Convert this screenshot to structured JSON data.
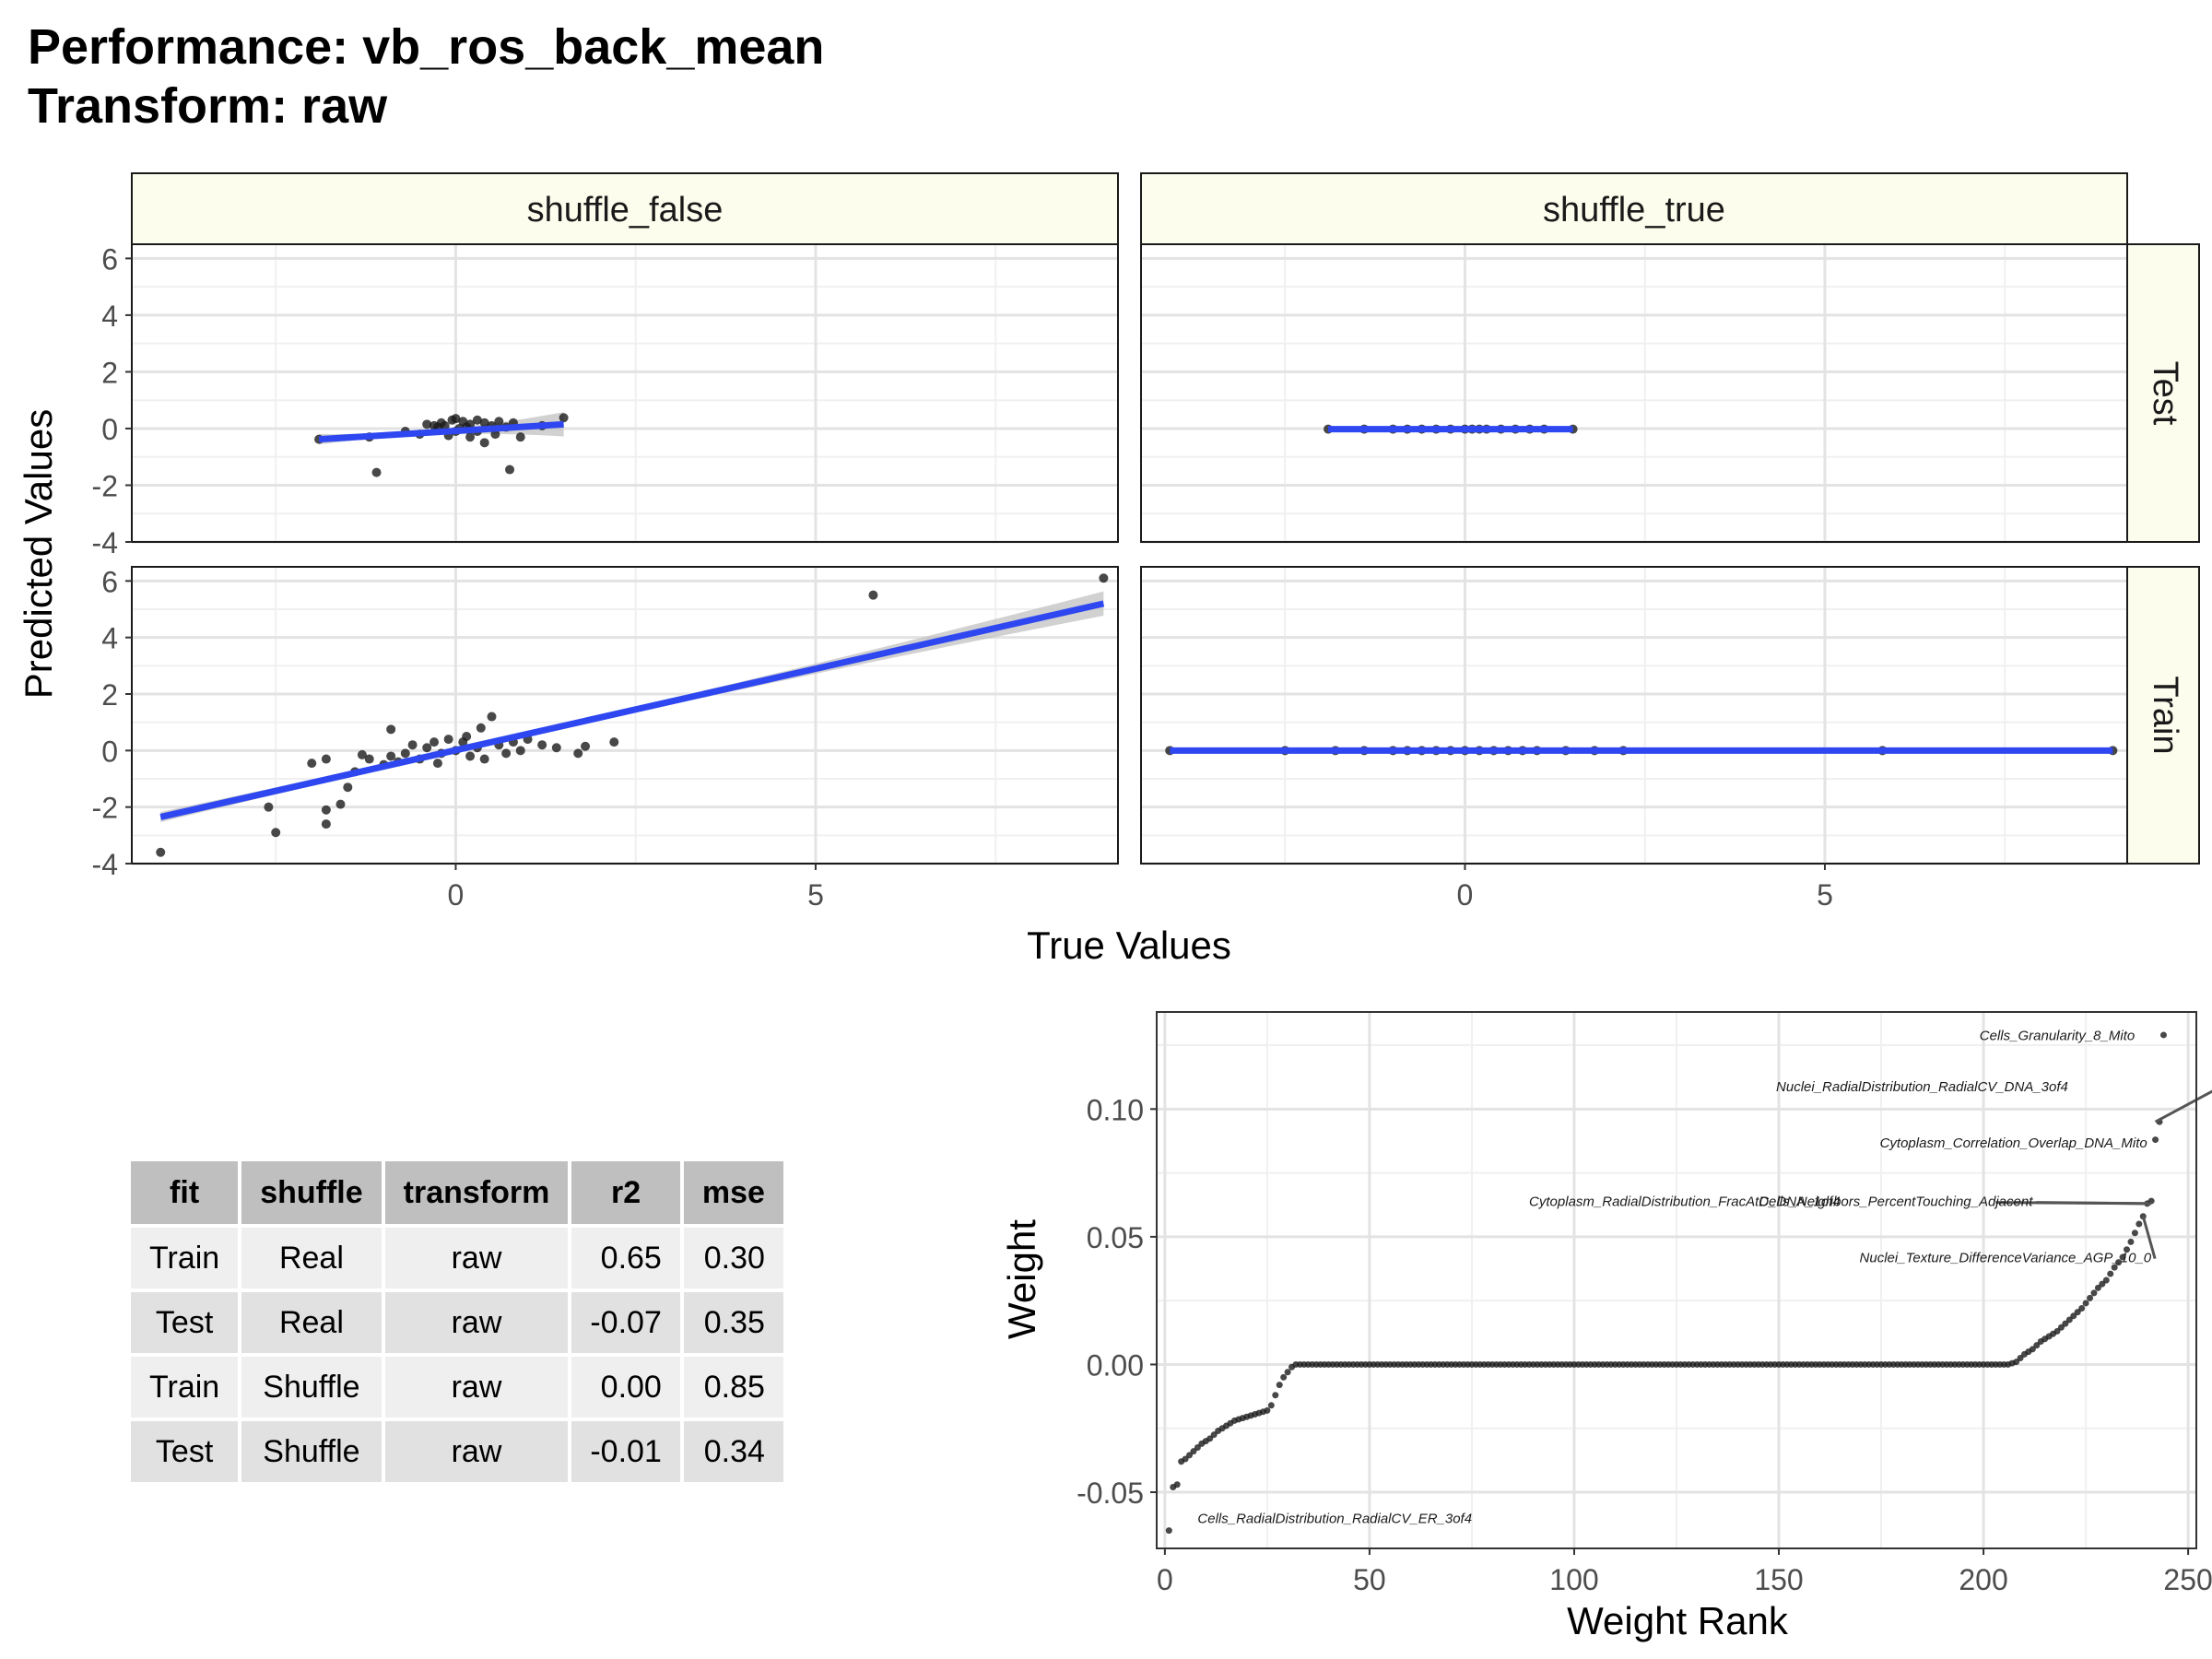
{
  "title_line1": "Performance: vb_ros_back_mean",
  "title_line2": "Transform: raw",
  "chart_data": [
    {
      "type": "scatter",
      "facet_cols": [
        "shuffle_false",
        "shuffle_true"
      ],
      "facet_rows": [
        "Test",
        "Train"
      ],
      "xlabel": "True Values",
      "ylabel": "Predicted Values",
      "xlim": [
        -4.5,
        9.2
      ],
      "ylim": [
        -4,
        6.5
      ],
      "x_ticks": [
        0,
        5
      ],
      "y_ticks": [
        -4,
        -2,
        0,
        2,
        4,
        6
      ],
      "y_tick_labels": [
        "-4",
        "-2",
        "0",
        "2",
        "4",
        "6"
      ],
      "colors": {
        "points": "#1a1a1a",
        "fit_line": "#2e47f0",
        "ci_band": "#bdbdbd",
        "strip_fill": "#fdfdee"
      },
      "panels": [
        {
          "col": "shuffle_false",
          "row": "Test",
          "fit": {
            "x": [
              -1.9,
              1.5
            ],
            "y": [
              -0.38,
              0.15
            ]
          },
          "points": [
            [
              -1.9,
              -0.38
            ],
            [
              -1.1,
              -1.55
            ],
            [
              0.75,
              -1.45
            ],
            [
              1.5,
              0.38
            ],
            [
              0.9,
              -0.3
            ],
            [
              -1.2,
              -0.3
            ],
            [
              -0.5,
              -0.2
            ],
            [
              -0.3,
              0.1
            ],
            [
              -0.2,
              0.2
            ],
            [
              0.0,
              0.35
            ],
            [
              0.1,
              0.25
            ],
            [
              0.2,
              0.15
            ],
            [
              0.3,
              -0.1
            ],
            [
              0.4,
              0.2
            ],
            [
              0.5,
              0.1
            ],
            [
              0.6,
              0.25
            ],
            [
              0.7,
              0.05
            ],
            [
              0.8,
              0.2
            ],
            [
              -0.1,
              -0.25
            ],
            [
              0.2,
              -0.3
            ],
            [
              0.4,
              -0.5
            ],
            [
              -0.7,
              -0.1
            ],
            [
              -0.4,
              0.15
            ],
            [
              0.05,
              0.0
            ],
            [
              0.15,
              0.05
            ],
            [
              -0.25,
              0.05
            ],
            [
              0.55,
              -0.2
            ],
            [
              -0.05,
              0.3
            ],
            [
              1.2,
              0.1
            ],
            [
              0.3,
              0.3
            ],
            [
              0.0,
              -0.1
            ],
            [
              -0.15,
              0.1
            ]
          ]
        },
        {
          "col": "shuffle_true",
          "row": "Test",
          "fit": {
            "x": [
              -1.9,
              1.5
            ],
            "y": [
              -0.02,
              -0.02
            ]
          },
          "points": [
            [
              -1.9,
              -0.02
            ],
            [
              -1.4,
              -0.02
            ],
            [
              -1.0,
              -0.02
            ],
            [
              -0.8,
              -0.02
            ],
            [
              -0.6,
              -0.02
            ],
            [
              -0.4,
              -0.02
            ],
            [
              -0.2,
              -0.02
            ],
            [
              0.0,
              -0.02
            ],
            [
              0.1,
              -0.02
            ],
            [
              0.2,
              -0.02
            ],
            [
              0.3,
              -0.02
            ],
            [
              0.5,
              -0.02
            ],
            [
              0.7,
              -0.02
            ],
            [
              0.9,
              -0.02
            ],
            [
              1.1,
              -0.02
            ],
            [
              1.5,
              -0.02
            ]
          ]
        },
        {
          "col": "shuffle_false",
          "row": "Train",
          "fit": {
            "x": [
              -4.1,
              9.0
            ],
            "y": [
              -2.35,
              5.2
            ]
          },
          "points": [
            [
              -4.1,
              -3.6
            ],
            [
              -2.6,
              -2.0
            ],
            [
              -2.5,
              -2.9
            ],
            [
              -1.8,
              -2.6
            ],
            [
              -1.8,
              -2.1
            ],
            [
              -1.6,
              -1.9
            ],
            [
              -1.5,
              -1.3
            ],
            [
              -2.0,
              -0.45
            ],
            [
              -1.8,
              -0.3
            ],
            [
              -1.4,
              -0.75
            ],
            [
              -1.2,
              -0.3
            ],
            [
              -1.0,
              -0.5
            ],
            [
              -0.9,
              -0.2
            ],
            [
              -0.8,
              -0.4
            ],
            [
              -0.7,
              -0.1
            ],
            [
              -0.6,
              0.2
            ],
            [
              -0.5,
              -0.3
            ],
            [
              -0.4,
              0.1
            ],
            [
              -0.3,
              0.3
            ],
            [
              -0.2,
              -0.1
            ],
            [
              -0.1,
              0.4
            ],
            [
              0.0,
              0.0
            ],
            [
              0.1,
              0.3
            ],
            [
              0.2,
              -0.2
            ],
            [
              0.3,
              0.1
            ],
            [
              0.4,
              -0.3
            ],
            [
              0.5,
              1.2
            ],
            [
              0.6,
              0.2
            ],
            [
              0.7,
              -0.1
            ],
            [
              0.8,
              0.3
            ],
            [
              0.9,
              0.0
            ],
            [
              1.0,
              0.4
            ],
            [
              1.2,
              0.2
            ],
            [
              1.4,
              0.1
            ],
            [
              1.7,
              -0.1
            ],
            [
              1.8,
              0.15
            ],
            [
              2.2,
              0.3
            ],
            [
              -0.9,
              0.75
            ],
            [
              -1.3,
              -0.15
            ],
            [
              0.35,
              0.8
            ],
            [
              -0.25,
              -0.45
            ],
            [
              0.15,
              0.5
            ],
            [
              5.8,
              5.5
            ],
            [
              9.0,
              6.1
            ]
          ]
        },
        {
          "col": "shuffle_true",
          "row": "Train",
          "fit": {
            "x": [
              -4.1,
              9.0
            ],
            "y": [
              0.0,
              0.0
            ]
          },
          "points": [
            [
              -4.1,
              0.0
            ],
            [
              -2.5,
              0.0
            ],
            [
              -1.8,
              0.0
            ],
            [
              -1.4,
              0.0
            ],
            [
              -1.0,
              0.0
            ],
            [
              -0.8,
              0.0
            ],
            [
              -0.6,
              0.0
            ],
            [
              -0.4,
              0.0
            ],
            [
              -0.2,
              0.0
            ],
            [
              0.0,
              0.0
            ],
            [
              0.2,
              0.0
            ],
            [
              0.4,
              0.0
            ],
            [
              0.6,
              0.0
            ],
            [
              0.8,
              0.0
            ],
            [
              1.0,
              0.0
            ],
            [
              1.4,
              0.0
            ],
            [
              1.8,
              0.0
            ],
            [
              2.2,
              0.0
            ],
            [
              5.8,
              0.0
            ],
            [
              9.0,
              0.0
            ]
          ]
        }
      ]
    },
    {
      "type": "scatter",
      "xlabel": "Weight Rank",
      "ylabel": "Weight",
      "xlim": [
        -2,
        252
      ],
      "ylim": [
        -0.072,
        0.138
      ],
      "x_ticks": [
        0,
        50,
        100,
        150,
        200,
        250
      ],
      "x_tick_labels": [
        "0",
        "50",
        "100",
        "150",
        "200",
        "250"
      ],
      "y_ticks": [
        -0.05,
        0.0,
        0.05,
        0.1
      ],
      "y_tick_labels": [
        "-0.05",
        "0.00",
        "0.05",
        "0.10"
      ],
      "curve_knots": [
        [
          1,
          -0.065
        ],
        [
          2,
          -0.048
        ],
        [
          3,
          -0.047
        ],
        [
          4,
          -0.038
        ],
        [
          5,
          -0.037
        ],
        [
          7,
          -0.034
        ],
        [
          9,
          -0.031
        ],
        [
          11,
          -0.029
        ],
        [
          13,
          -0.026
        ],
        [
          15,
          -0.024
        ],
        [
          17,
          -0.022
        ],
        [
          19,
          -0.021
        ],
        [
          21,
          -0.02
        ],
        [
          23,
          -0.019
        ],
        [
          25,
          -0.018
        ],
        [
          26,
          -0.016
        ],
        [
          27,
          -0.012
        ],
        [
          28,
          -0.008
        ],
        [
          29,
          -0.005
        ],
        [
          30,
          -0.003
        ],
        [
          31,
          -0.001
        ],
        [
          32,
          0.0
        ],
        [
          206,
          0.0
        ],
        [
          208,
          0.001
        ],
        [
          210,
          0.004
        ],
        [
          212,
          0.006
        ],
        [
          214,
          0.009
        ],
        [
          216,
          0.011
        ],
        [
          218,
          0.013
        ],
        [
          220,
          0.016
        ],
        [
          222,
          0.019
        ],
        [
          224,
          0.022
        ],
        [
          226,
          0.026
        ],
        [
          228,
          0.03
        ],
        [
          230,
          0.033
        ],
        [
          232,
          0.038
        ],
        [
          234,
          0.042
        ],
        [
          236,
          0.048
        ],
        [
          238,
          0.055
        ],
        [
          239,
          0.058
        ],
        [
          240,
          0.063
        ],
        [
          241,
          0.064
        ],
        [
          242,
          0.088
        ],
        [
          243,
          0.095
        ],
        [
          244,
          0.129
        ]
      ],
      "annotations": [
        {
          "label": "Cells_Granularity_8_Mito",
          "x": 218,
          "y": 0.127,
          "anchor": "middle"
        },
        {
          "label": "Nuclei_RadialDistribution_RadialCV_DNA_3of4",
          "x": 185,
          "y": 0.107,
          "anchor": "middle",
          "arrow_to": [
            242,
            0.095
          ]
        },
        {
          "label": "Cytoplasm_Correlation_Overlap_DNA_Mito",
          "x": 240,
          "y": 0.085,
          "anchor": "end"
        },
        {
          "label": "Cytoplasm_RadialDistribution_FracAtD_DNA_1of4",
          "x": 127,
          "y": 0.062,
          "anchor": "middle",
          "arrow_to": [
            241,
            0.063
          ]
        },
        {
          "label": "Cells_Neighbors_PercentTouching_Adjacent",
          "x": 212,
          "y": 0.062,
          "anchor": "end",
          "arrow_to": [
            240,
            0.063
          ]
        },
        {
          "label": "Nuclei_Texture_DifferenceVariance_AGP_10_0",
          "x": 241,
          "y": 0.04,
          "anchor": "end",
          "arrow_to": [
            239,
            0.058
          ]
        },
        {
          "label": "Cells_RadialDistribution_RadialCV_ER_3of4",
          "x": 8,
          "y": -0.062,
          "anchor": "start"
        }
      ]
    }
  ],
  "table": {
    "headers": [
      "fit",
      "shuffle",
      "transform",
      "r2",
      "mse"
    ],
    "rows": [
      [
        "Train",
        "Real",
        "raw",
        "0.65",
        "0.30"
      ],
      [
        "Test",
        "Real",
        "raw",
        "-0.07",
        "0.35"
      ],
      [
        "Train",
        "Shuffle",
        "raw",
        "0.00",
        "0.85"
      ],
      [
        "Test",
        "Shuffle",
        "raw",
        "-0.01",
        "0.34"
      ]
    ]
  }
}
